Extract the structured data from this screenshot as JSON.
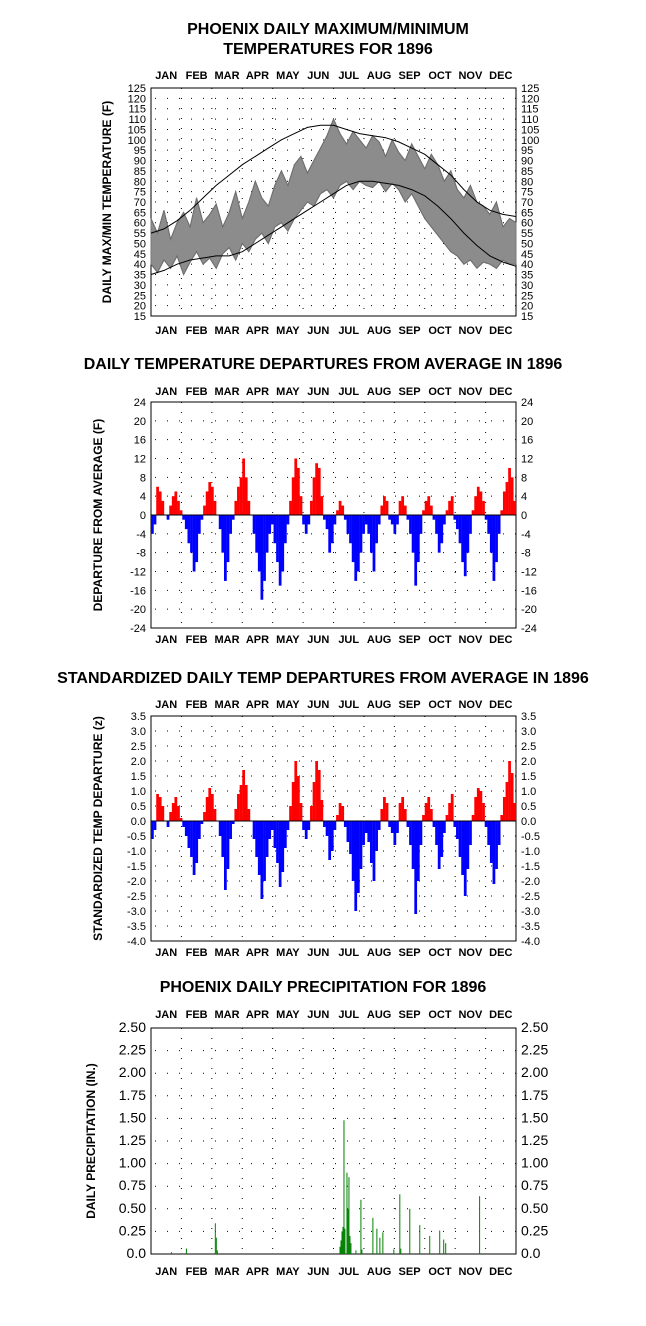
{
  "chart_data": [
    {
      "type": "area",
      "title": [
        "PHOENIX DAILY MAXIMUM/MINIMUM",
        "TEMPERATURES FOR 1896"
      ],
      "ylabel": "DAILY MAX/MIN TEMPERATURE (F)",
      "months": [
        "JAN",
        "FEB",
        "MAR",
        "APR",
        "MAY",
        "JUN",
        "JUL",
        "AUG",
        "SEP",
        "OCT",
        "NOV",
        "DEC"
      ],
      "ylim": [
        15,
        125
      ],
      "yticks": [
        15,
        20,
        25,
        30,
        35,
        40,
        45,
        50,
        55,
        60,
        65,
        70,
        75,
        80,
        85,
        90,
        95,
        100,
        105,
        110,
        115,
        120,
        125
      ],
      "grid": "dotted",
      "series": [
        {
          "values": [
            55,
            57,
            61,
            66,
            72,
            78,
            83,
            88,
            92,
            96,
            100,
            103,
            106,
            107,
            107,
            105,
            103,
            102,
            101,
            99,
            96,
            93,
            88,
            83,
            76,
            70,
            66,
            64,
            63
          ],
          "color": "#000000"
        },
        {
          "values": [
            35,
            37,
            40,
            42,
            43,
            44,
            44,
            46,
            50,
            54,
            58,
            62,
            66,
            70,
            74,
            78,
            80,
            80,
            79,
            78,
            76,
            73,
            68,
            62,
            55,
            49,
            44,
            41,
            39
          ],
          "color": "#000000"
        },
        {
          "values": [
            62,
            55,
            66,
            52,
            60,
            65,
            58,
            72,
            60,
            64,
            69,
            58,
            65,
            75,
            62,
            70,
            80,
            72,
            68,
            78,
            85,
            78,
            88,
            92,
            84,
            90,
            96,
            102,
            110,
            103,
            98,
            104,
            100,
            96,
            102,
            99,
            92,
            100,
            94,
            90,
            98,
            92,
            86,
            93,
            88,
            80,
            85,
            76,
            72,
            78,
            70,
            68,
            64,
            70,
            58,
            62,
            60
          ],
          "color": "#808080"
        },
        {
          "values": [
            40,
            36,
            42,
            38,
            44,
            35,
            41,
            46,
            40,
            43,
            38,
            45,
            48,
            42,
            50,
            46,
            52,
            55,
            50,
            58,
            60,
            56,
            62,
            66,
            70,
            68,
            74,
            76,
            72,
            78,
            80,
            76,
            80,
            78,
            77,
            80,
            75,
            79,
            76,
            70,
            74,
            68,
            62,
            58,
            54,
            50,
            46,
            44,
            40,
            42,
            38,
            41,
            40,
            38,
            42,
            40,
            40
          ],
          "color": "#808080"
        }
      ]
    },
    {
      "type": "bar",
      "title": "DAILY TEMPERATURE DEPARTURES FROM AVERAGE IN 1896",
      "ylabel": "DEPARTURE FROM AVERAGE (F)",
      "months": [
        "JAN",
        "FEB",
        "MAR",
        "APR",
        "MAY",
        "JUN",
        "JUL",
        "AUG",
        "SEP",
        "OCT",
        "NOV",
        "DEC"
      ],
      "ylim": [
        -24,
        24
      ],
      "yticks": [
        24,
        20,
        16,
        12,
        8,
        4,
        0,
        -4,
        -8,
        -12,
        -16,
        -20,
        -24
      ],
      "grid": "dotted",
      "colors": {
        "positive": "#ff0000",
        "negative": "#0000ff"
      },
      "values": [
        -4,
        -2,
        6,
        5,
        3,
        0,
        -1,
        2,
        4,
        5,
        3,
        1,
        -1,
        -3,
        -6,
        -8,
        -12,
        -10,
        -4,
        -1,
        2,
        5,
        7,
        6,
        3,
        0,
        -3,
        -8,
        -14,
        -10,
        -4,
        -1,
        3,
        6,
        8,
        12,
        8,
        3,
        0,
        -4,
        -8,
        -12,
        -18,
        -14,
        -8,
        -4,
        -2,
        -6,
        -10,
        -15,
        -12,
        -6,
        -2,
        3,
        8,
        12,
        10,
        4,
        -2,
        -4,
        -2,
        3,
        8,
        11,
        10,
        4,
        -1,
        -3,
        -8,
        -6,
        -2,
        1,
        3,
        2,
        -1,
        -4,
        -6,
        -10,
        -14,
        -12,
        -8,
        -4,
        -2,
        -4,
        -8,
        -12,
        -6,
        -2,
        2,
        4,
        3,
        -1,
        -2,
        -4,
        -2,
        3,
        4,
        2,
        -1,
        -4,
        -8,
        -15,
        -10,
        -4,
        1,
        3,
        4,
        2,
        -1,
        -4,
        -8,
        -6,
        -2,
        1,
        3,
        4,
        -1,
        -3,
        -6,
        -10,
        -13,
        -8,
        -4,
        1,
        4,
        6,
        5,
        3,
        -1,
        -4,
        -8,
        -14,
        -10,
        -4,
        1,
        5,
        7,
        10,
        8,
        3
      ]
    },
    {
      "type": "bar",
      "title": "STANDARDIZED DAILY TEMP DEPARTURES FROM AVERAGE IN 1896",
      "ylabel": "STANDARDIZED TEMP DEPARTURE (z)",
      "months": [
        "JAN",
        "FEB",
        "MAR",
        "APR",
        "MAY",
        "JUN",
        "JUL",
        "AUG",
        "SEP",
        "OCT",
        "NOV",
        "DEC"
      ],
      "ylim": [
        -4.0,
        3.5
      ],
      "yticks": [
        "3.5",
        "3.0",
        "2.5",
        "2.0",
        "1.5",
        "1.0",
        "0.5",
        "0.0",
        "-0.5",
        "-1.0",
        "-1.5",
        "-2.0",
        "-2.5",
        "-3.0",
        "-3.5",
        "-4.0"
      ],
      "grid": "dotted",
      "colors": {
        "positive": "#ff0000",
        "negative": "#0000ff"
      },
      "values": [
        -0.6,
        -0.3,
        0.9,
        0.8,
        0.5,
        0.0,
        -0.2,
        0.3,
        0.6,
        0.8,
        0.5,
        0.1,
        -0.2,
        -0.5,
        -0.9,
        -1.2,
        -1.8,
        -1.4,
        -0.6,
        -0.1,
        0.3,
        0.8,
        1.1,
        0.9,
        0.4,
        0.0,
        -0.5,
        -1.2,
        -2.3,
        -1.6,
        -0.6,
        -0.1,
        0.4,
        0.9,
        1.2,
        1.7,
        1.2,
        0.4,
        0.0,
        -0.6,
        -1.2,
        -1.8,
        -2.6,
        -2.0,
        -1.2,
        -0.6,
        -0.3,
        -0.9,
        -1.4,
        -2.2,
        -1.7,
        -0.9,
        -0.3,
        0.5,
        1.3,
        2.0,
        1.5,
        0.6,
        -0.3,
        -0.6,
        -0.3,
        0.5,
        1.3,
        2.0,
        1.7,
        0.7,
        -0.2,
        -0.5,
        -1.3,
        -1.0,
        -0.3,
        0.2,
        0.6,
        0.5,
        -0.2,
        -0.7,
        -1.1,
        -2.0,
        -3.0,
        -2.4,
        -1.6,
        -0.8,
        -0.4,
        -0.7,
        -1.4,
        -2.0,
        -1.0,
        -0.3,
        0.4,
        0.8,
        0.6,
        -0.2,
        -0.4,
        -0.8,
        -0.4,
        0.6,
        0.8,
        0.4,
        -0.2,
        -0.8,
        -1.6,
        -3.1,
        -2.0,
        -0.8,
        0.2,
        0.6,
        0.8,
        0.4,
        -0.2,
        -0.8,
        -1.6,
        -1.2,
        -0.4,
        0.2,
        0.6,
        0.9,
        -0.2,
        -0.6,
        -1.2,
        -1.8,
        -2.5,
        -1.6,
        -0.8,
        0.2,
        0.8,
        1.1,
        1.0,
        0.6,
        -0.2,
        -0.8,
        -1.4,
        -2.1,
        -1.6,
        -0.8,
        0.2,
        0.8,
        1.3,
        2.0,
        1.6,
        0.6
      ]
    },
    {
      "type": "bar",
      "title": "PHOENIX DAILY PRECIPITATION FOR 1896",
      "ylabel": "DAILY PRECIPITATION (IN.)",
      "months": [
        "JAN",
        "FEB",
        "MAR",
        "APR",
        "MAY",
        "JUN",
        "JUL",
        "AUG",
        "SEP",
        "OCT",
        "NOV",
        "DEC"
      ],
      "ylim": [
        0,
        2.5
      ],
      "yticks": [
        "2.50",
        "2.25",
        "2.00",
        "1.75",
        "1.50",
        "1.25",
        "1.00",
        "0.75",
        "0.50",
        "0.25",
        "0.0"
      ],
      "grid": "dotted",
      "colors": {
        "bars": "#008000"
      },
      "points": [
        {
          "day": 20,
          "value": 0.02
        },
        {
          "day": 35,
          "value": 0.06
        },
        {
          "day": 64,
          "value": 0.34
        },
        {
          "day": 65,
          "value": 0.18
        },
        {
          "day": 66,
          "value": 0.04
        },
        {
          "day": 189,
          "value": 0.08
        },
        {
          "day": 190,
          "value": 0.15
        },
        {
          "day": 191,
          "value": 0.25
        },
        {
          "day": 192,
          "value": 0.3
        },
        {
          "day": 193,
          "value": 1.48
        },
        {
          "day": 194,
          "value": 0.28
        },
        {
          "day": 196,
          "value": 0.9
        },
        {
          "day": 197,
          "value": 0.5
        },
        {
          "day": 198,
          "value": 0.85
        },
        {
          "day": 199,
          "value": 0.2
        },
        {
          "day": 200,
          "value": 0.12
        },
        {
          "day": 205,
          "value": 0.04
        },
        {
          "day": 210,
          "value": 0.6
        },
        {
          "day": 211,
          "value": 0.05
        },
        {
          "day": 222,
          "value": 0.4
        },
        {
          "day": 226,
          "value": 0.28
        },
        {
          "day": 229,
          "value": 0.18
        },
        {
          "day": 232,
          "value": 0.24
        },
        {
          "day": 243,
          "value": 0.05
        },
        {
          "day": 249,
          "value": 0.66
        },
        {
          "day": 250,
          "value": 0.06
        },
        {
          "day": 259,
          "value": 0.5
        },
        {
          "day": 269,
          "value": 0.32
        },
        {
          "day": 279,
          "value": 0.2
        },
        {
          "day": 289,
          "value": 0.26
        },
        {
          "day": 293,
          "value": 0.16
        },
        {
          "day": 295,
          "value": 0.12
        },
        {
          "day": 329,
          "value": 0.64
        }
      ]
    }
  ]
}
